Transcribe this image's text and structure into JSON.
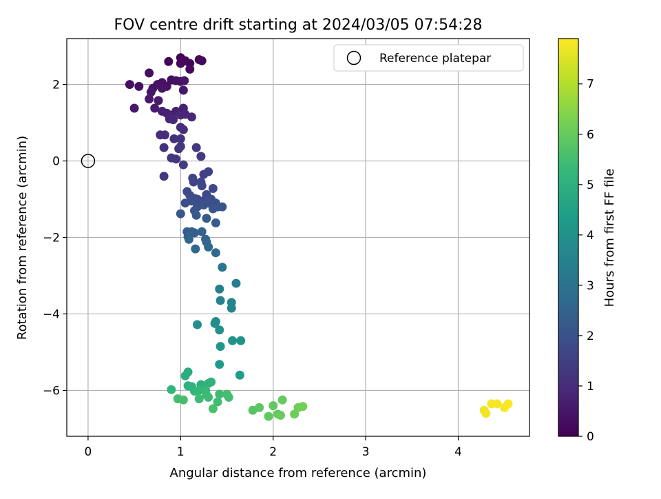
{
  "chart_data": {
    "type": "scatter",
    "title": "FOV centre drift starting at 2024/03/05 07:54:28",
    "xlabel": "Angular distance from reference (arcmin)",
    "ylabel": "Rotation from reference (arcmin)",
    "xlim": [
      -0.23,
      4.77
    ],
    "ylim": [
      -7.2,
      3.2
    ],
    "xticks": [
      0,
      1,
      2,
      3,
      4
    ],
    "yticks": [
      -6,
      -4,
      -2,
      0,
      2
    ],
    "ytick_labels": [
      "−6",
      "−4",
      "−2",
      "0",
      "2"
    ],
    "grid": true,
    "legend": {
      "position": "top-right",
      "entries": [
        "Reference platepar"
      ]
    },
    "reference_point": {
      "x": 0,
      "y": 0,
      "label": "Reference platepar"
    },
    "colorbar": {
      "label": "Hours from first FF file",
      "range": [
        0,
        7.9
      ],
      "ticks": [
        0,
        1,
        2,
        3,
        4,
        5,
        6,
        7
      ],
      "colormap": "viridis"
    },
    "colormap_stops": [
      "#440154",
      "#482878",
      "#3e4989",
      "#31688e",
      "#26828e",
      "#1f9e89",
      "#35b779",
      "#6ece58",
      "#b5de2b",
      "#fde725"
    ],
    "points": [
      {
        "x": 1.0,
        "y": 2.7,
        "t": 0.05
      },
      {
        "x": 1.05,
        "y": 2.62,
        "t": 0.1
      },
      {
        "x": 1.1,
        "y": 2.55,
        "t": 0.12
      },
      {
        "x": 0.87,
        "y": 2.6,
        "t": 0.1
      },
      {
        "x": 1.2,
        "y": 2.65,
        "t": 0.15
      },
      {
        "x": 1.23,
        "y": 2.62,
        "t": 0.18
      },
      {
        "x": 1.0,
        "y": 2.55,
        "t": 0.15
      },
      {
        "x": 1.1,
        "y": 2.4,
        "t": 0.2
      },
      {
        "x": 0.45,
        "y": 2.0,
        "t": 0.3
      },
      {
        "x": 0.55,
        "y": 1.95,
        "t": 0.35
      },
      {
        "x": 0.66,
        "y": 2.3,
        "t": 0.3
      },
      {
        "x": 0.75,
        "y": 2.0,
        "t": 0.4
      },
      {
        "x": 0.8,
        "y": 2.05,
        "t": 0.35
      },
      {
        "x": 0.85,
        "y": 1.95,
        "t": 0.4
      },
      {
        "x": 0.9,
        "y": 2.12,
        "t": 0.3
      },
      {
        "x": 0.95,
        "y": 2.1,
        "t": 0.35
      },
      {
        "x": 1.0,
        "y": 2.08,
        "t": 0.4
      },
      {
        "x": 1.04,
        "y": 2.1,
        "t": 0.45
      },
      {
        "x": 1.03,
        "y": 1.85,
        "t": 0.5
      },
      {
        "x": 0.7,
        "y": 1.9,
        "t": 0.4
      },
      {
        "x": 0.8,
        "y": 1.9,
        "t": 0.45
      },
      {
        "x": 0.68,
        "y": 1.8,
        "t": 0.5
      },
      {
        "x": 0.66,
        "y": 1.62,
        "t": 0.55
      },
      {
        "x": 0.76,
        "y": 1.58,
        "t": 0.6
      },
      {
        "x": 0.5,
        "y": 1.38,
        "t": 0.55
      },
      {
        "x": 0.72,
        "y": 1.38,
        "t": 0.6
      },
      {
        "x": 0.8,
        "y": 1.3,
        "t": 0.7
      },
      {
        "x": 0.85,
        "y": 1.25,
        "t": 0.75
      },
      {
        "x": 0.9,
        "y": 1.2,
        "t": 0.8
      },
      {
        "x": 0.95,
        "y": 1.3,
        "t": 0.7
      },
      {
        "x": 1.0,
        "y": 1.2,
        "t": 0.9
      },
      {
        "x": 1.03,
        "y": 1.38,
        "t": 0.7
      },
      {
        "x": 1.05,
        "y": 1.22,
        "t": 0.85
      },
      {
        "x": 1.12,
        "y": 1.15,
        "t": 0.9
      },
      {
        "x": 0.88,
        "y": 1.1,
        "t": 0.85
      },
      {
        "x": 0.92,
        "y": 1.08,
        "t": 0.9
      },
      {
        "x": 1.0,
        "y": 0.88,
        "t": 1.0
      },
      {
        "x": 1.03,
        "y": 0.82,
        "t": 1.05
      },
      {
        "x": 0.78,
        "y": 0.68,
        "t": 1.0
      },
      {
        "x": 0.83,
        "y": 0.68,
        "t": 1.05
      },
      {
        "x": 0.93,
        "y": 0.58,
        "t": 1.1
      },
      {
        "x": 1.0,
        "y": 0.58,
        "t": 1.15
      },
      {
        "x": 0.82,
        "y": 0.35,
        "t": 1.15
      },
      {
        "x": 0.98,
        "y": 0.32,
        "t": 1.2
      },
      {
        "x": 1.0,
        "y": 0.38,
        "t": 1.25
      },
      {
        "x": 1.17,
        "y": 0.35,
        "t": 1.3
      },
      {
        "x": 0.9,
        "y": 0.08,
        "t": 1.25
      },
      {
        "x": 0.95,
        "y": 0.05,
        "t": 1.3
      },
      {
        "x": 1.22,
        "y": 0.12,
        "t": 1.35
      },
      {
        "x": 1.03,
        "y": -0.1,
        "t": 1.4
      },
      {
        "x": 0.82,
        "y": -0.4,
        "t": 1.3
      },
      {
        "x": 1.25,
        "y": -0.35,
        "t": 1.5
      },
      {
        "x": 1.3,
        "y": -0.28,
        "t": 1.55
      },
      {
        "x": 1.13,
        "y": -0.45,
        "t": 1.6
      },
      {
        "x": 1.14,
        "y": -0.55,
        "t": 1.6
      },
      {
        "x": 1.22,
        "y": -0.55,
        "t": 1.65
      },
      {
        "x": 1.23,
        "y": -0.65,
        "t": 1.7
      },
      {
        "x": 1.35,
        "y": -0.72,
        "t": 1.7
      },
      {
        "x": 1.07,
        "y": -0.8,
        "t": 1.75
      },
      {
        "x": 1.1,
        "y": -0.9,
        "t": 1.8
      },
      {
        "x": 1.15,
        "y": -0.98,
        "t": 1.8
      },
      {
        "x": 1.18,
        "y": -1.0,
        "t": 1.85
      },
      {
        "x": 1.23,
        "y": -1.05,
        "t": 1.85
      },
      {
        "x": 1.28,
        "y": -0.88,
        "t": 1.75
      },
      {
        "x": 1.33,
        "y": -1.0,
        "t": 1.9
      },
      {
        "x": 1.38,
        "y": -1.1,
        "t": 1.95
      },
      {
        "x": 1.4,
        "y": -1.2,
        "t": 2.0
      },
      {
        "x": 1.45,
        "y": -1.2,
        "t": 2.05
      },
      {
        "x": 1.05,
        "y": -1.1,
        "t": 1.9
      },
      {
        "x": 1.12,
        "y": -1.05,
        "t": 1.95
      },
      {
        "x": 1.18,
        "y": -1.2,
        "t": 2.0
      },
      {
        "x": 1.25,
        "y": -1.15,
        "t": 2.05
      },
      {
        "x": 1.3,
        "y": -1.1,
        "t": 2.0
      },
      {
        "x": 1.35,
        "y": -1.25,
        "t": 2.1
      },
      {
        "x": 1.15,
        "y": -1.3,
        "t": 2.1
      },
      {
        "x": 1.0,
        "y": -1.38,
        "t": 2.15
      },
      {
        "x": 1.17,
        "y": -1.42,
        "t": 2.2
      },
      {
        "x": 1.28,
        "y": -1.5,
        "t": 2.25
      },
      {
        "x": 1.38,
        "y": -1.62,
        "t": 2.3
      },
      {
        "x": 1.07,
        "y": -1.85,
        "t": 2.3
      },
      {
        "x": 1.12,
        "y": -1.85,
        "t": 2.35
      },
      {
        "x": 1.15,
        "y": -1.88,
        "t": 2.4
      },
      {
        "x": 1.23,
        "y": -1.85,
        "t": 2.45
      },
      {
        "x": 1.27,
        "y": -2.05,
        "t": 2.5
      },
      {
        "x": 1.08,
        "y": -1.98,
        "t": 2.45
      },
      {
        "x": 1.09,
        "y": -2.05,
        "t": 2.55
      },
      {
        "x": 1.28,
        "y": -2.12,
        "t": 2.6
      },
      {
        "x": 1.3,
        "y": -2.25,
        "t": 2.65
      },
      {
        "x": 1.16,
        "y": -2.3,
        "t": 2.65
      },
      {
        "x": 1.38,
        "y": -2.4,
        "t": 2.7
      },
      {
        "x": 1.45,
        "y": -2.78,
        "t": 3.1
      },
      {
        "x": 1.6,
        "y": -3.2,
        "t": 3.3
      },
      {
        "x": 1.42,
        "y": -3.35,
        "t": 3.4
      },
      {
        "x": 1.43,
        "y": -3.65,
        "t": 3.5
      },
      {
        "x": 1.55,
        "y": -3.7,
        "t": 3.6
      },
      {
        "x": 1.55,
        "y": -3.85,
        "t": 3.6
      },
      {
        "x": 1.38,
        "y": -4.2,
        "t": 3.8
      },
      {
        "x": 1.37,
        "y": -4.25,
        "t": 3.85
      },
      {
        "x": 1.18,
        "y": -4.28,
        "t": 3.9
      },
      {
        "x": 1.42,
        "y": -4.42,
        "t": 3.95
      },
      {
        "x": 1.56,
        "y": -4.7,
        "t": 4.0
      },
      {
        "x": 1.65,
        "y": -4.7,
        "t": 4.05
      },
      {
        "x": 1.43,
        "y": -4.85,
        "t": 4.1
      },
      {
        "x": 1.42,
        "y": -5.32,
        "t": 4.3
      },
      {
        "x": 1.64,
        "y": -5.6,
        "t": 4.4
      },
      {
        "x": 1.08,
        "y": -5.52,
        "t": 4.8
      },
      {
        "x": 1.05,
        "y": -5.62,
        "t": 4.9
      },
      {
        "x": 1.08,
        "y": -5.88,
        "t": 5.0
      },
      {
        "x": 1.12,
        "y": -5.9,
        "t": 5.05
      },
      {
        "x": 1.22,
        "y": -5.85,
        "t": 5.0
      },
      {
        "x": 1.33,
        "y": -5.78,
        "t": 5.1
      },
      {
        "x": 1.3,
        "y": -5.82,
        "t": 5.1
      },
      {
        "x": 0.9,
        "y": -5.98,
        "t": 5.2
      },
      {
        "x": 1.15,
        "y": -6.02,
        "t": 5.2
      },
      {
        "x": 1.2,
        "y": -6.0,
        "t": 5.25
      },
      {
        "x": 1.27,
        "y": -6.0,
        "t": 5.3
      },
      {
        "x": 1.28,
        "y": -6.12,
        "t": 5.35
      },
      {
        "x": 1.3,
        "y": -6.18,
        "t": 5.4
      },
      {
        "x": 1.2,
        "y": -6.22,
        "t": 5.4
      },
      {
        "x": 1.42,
        "y": -6.1,
        "t": 5.4
      },
      {
        "x": 1.4,
        "y": -6.3,
        "t": 5.45
      },
      {
        "x": 1.5,
        "y": -6.1,
        "t": 5.5
      },
      {
        "x": 1.52,
        "y": -6.18,
        "t": 5.5
      },
      {
        "x": 0.97,
        "y": -6.22,
        "t": 5.5
      },
      {
        "x": 1.03,
        "y": -6.25,
        "t": 5.55
      },
      {
        "x": 1.35,
        "y": -6.48,
        "t": 5.6
      },
      {
        "x": 1.78,
        "y": -6.52,
        "t": 5.8
      },
      {
        "x": 1.85,
        "y": -6.45,
        "t": 5.85
      },
      {
        "x": 1.95,
        "y": -6.68,
        "t": 5.9
      },
      {
        "x": 2.0,
        "y": -6.4,
        "t": 5.95
      },
      {
        "x": 2.05,
        "y": -6.62,
        "t": 6.0
      },
      {
        "x": 2.08,
        "y": -6.65,
        "t": 6.05
      },
      {
        "x": 2.1,
        "y": -6.25,
        "t": 6.0
      },
      {
        "x": 2.23,
        "y": -6.62,
        "t": 6.1
      },
      {
        "x": 2.27,
        "y": -6.45,
        "t": 6.15
      },
      {
        "x": 2.32,
        "y": -6.42,
        "t": 6.2
      },
      {
        "x": 4.28,
        "y": -6.52,
        "t": 7.7
      },
      {
        "x": 4.3,
        "y": -6.6,
        "t": 7.75
      },
      {
        "x": 4.36,
        "y": -6.35,
        "t": 7.8
      },
      {
        "x": 4.42,
        "y": -6.35,
        "t": 7.82
      },
      {
        "x": 4.5,
        "y": -6.45,
        "t": 7.85
      },
      {
        "x": 4.54,
        "y": -6.35,
        "t": 7.88
      }
    ]
  }
}
